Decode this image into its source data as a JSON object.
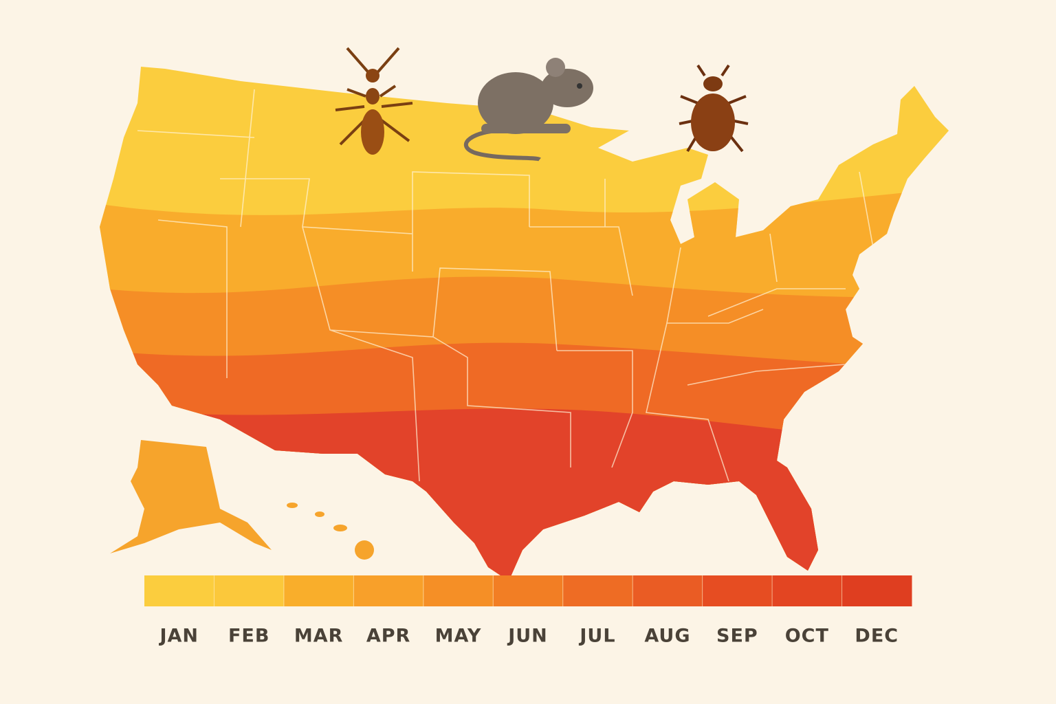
{
  "legend": {
    "segments": [
      {
        "label": "JAN",
        "color": "#fbcd3e"
      },
      {
        "label": "FEB",
        "color": "#fbc83b"
      },
      {
        "label": "MAR",
        "color": "#f9ae2b"
      },
      {
        "label": "APR",
        "color": "#f8a02a"
      },
      {
        "label": "MAY",
        "color": "#f58f26"
      },
      {
        "label": "JUN",
        "color": "#f27e24"
      },
      {
        "label": "JUL",
        "color": "#ee6c24"
      },
      {
        "label": "AUG",
        "color": "#ea5c24"
      },
      {
        "label": "SEP",
        "color": "#e64d22"
      },
      {
        "label": "OCT",
        "color": "#e34522"
      },
      {
        "label": "DEC",
        "color": "#df3e20"
      }
    ]
  }
}
